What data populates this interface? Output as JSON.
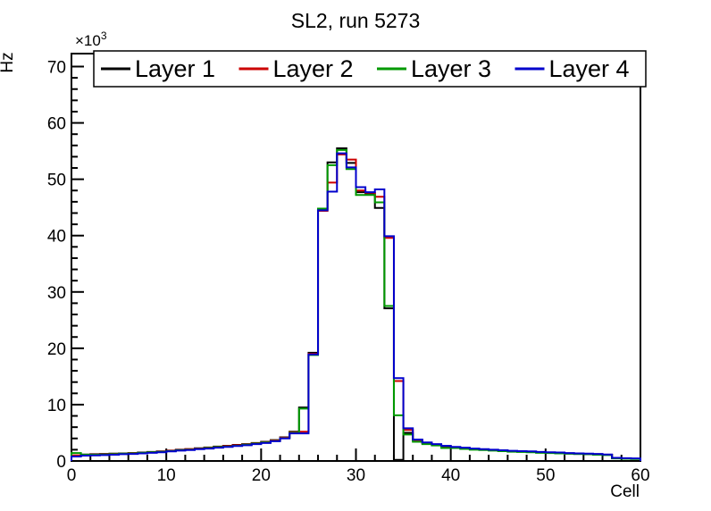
{
  "title": "SL2, run 5273",
  "y_axis": {
    "label": "Hz",
    "multiplier": "×10",
    "multiplier_exponent": "3",
    "major_ticks": [
      0,
      10,
      20,
      30,
      40,
      50,
      60,
      70
    ],
    "minor_step": 2
  },
  "x_axis": {
    "label": "Cell",
    "major_ticks": [
      0,
      10,
      20,
      30,
      40,
      50,
      60
    ],
    "minor_step": 2
  },
  "legend": {
    "items": [
      {
        "label": "Layer 1",
        "color": "#000000"
      },
      {
        "label": "Layer 2",
        "color": "#cc0000"
      },
      {
        "label": "Layer 3",
        "color": "#009900"
      },
      {
        "label": "Layer 4",
        "color": "#0000cc"
      }
    ]
  },
  "chart_data": {
    "type": "line",
    "subtype": "step-histogram",
    "title": "SL2, run 5273",
    "xlabel": "Cell",
    "ylabel": "Hz",
    "y_unit_multiplier": 1000,
    "xlim": [
      0,
      60
    ],
    "ylim": [
      0,
      72.3
    ],
    "bin_width": 1,
    "grid": false,
    "legend_position": "top",
    "series": [
      {
        "name": "Layer 1",
        "color": "#000000",
        "values": [
          0.9,
          1.15,
          1.2,
          1.25,
          1.3,
          1.35,
          1.4,
          1.5,
          1.6,
          1.7,
          1.85,
          2.0,
          2.1,
          2.25,
          2.4,
          2.55,
          2.7,
          2.85,
          3.0,
          3.2,
          3.4,
          3.7,
          4.2,
          5.2,
          9.5,
          19.2,
          44.6,
          53.0,
          55.5,
          52.9,
          47.7,
          47.5,
          44.9,
          27.1,
          0.2,
          5.0,
          3.6,
          3.15,
          2.85,
          2.6,
          2.4,
          2.25,
          2.1,
          2.0,
          1.9,
          1.8,
          1.7,
          1.65,
          1.6,
          1.5,
          1.45,
          1.4,
          1.3,
          1.25,
          1.2,
          1.15,
          1.1,
          0.5,
          0.45,
          0.4
        ]
      },
      {
        "name": "Layer 2",
        "color": "#cc0000",
        "values": [
          1.0,
          1.1,
          1.15,
          1.2,
          1.25,
          1.3,
          1.4,
          1.45,
          1.55,
          1.65,
          1.8,
          1.95,
          2.1,
          2.2,
          2.35,
          2.5,
          2.65,
          2.8,
          2.95,
          3.15,
          3.35,
          3.65,
          4.15,
          5.1,
          5.2,
          19.0,
          44.4,
          49.4,
          54.4,
          53.5,
          48.0,
          47.6,
          46.9,
          39.6,
          14.2,
          5.5,
          3.7,
          3.2,
          2.9,
          2.65,
          2.45,
          2.3,
          2.15,
          2.05,
          1.95,
          1.85,
          1.75,
          1.7,
          1.65,
          1.55,
          1.5,
          1.45,
          1.35,
          1.3,
          1.25,
          1.2,
          1.1,
          0.5,
          0.45,
          0.4
        ]
      },
      {
        "name": "Layer 3",
        "color": "#009900",
        "values": [
          1.4,
          1.1,
          1.1,
          1.15,
          1.2,
          1.3,
          1.35,
          1.45,
          1.55,
          1.6,
          1.75,
          1.9,
          2.0,
          2.15,
          2.3,
          2.45,
          2.55,
          2.7,
          2.9,
          3.1,
          3.3,
          3.55,
          4.05,
          5.0,
          9.3,
          18.8,
          44.8,
          52.5,
          55.2,
          51.8,
          47.2,
          47.2,
          45.9,
          27.5,
          8.1,
          4.7,
          3.4,
          3.0,
          2.75,
          2.3,
          2.3,
          2.15,
          2.0,
          1.95,
          1.85,
          1.75,
          1.65,
          1.6,
          1.55,
          1.45,
          1.4,
          1.35,
          1.3,
          1.25,
          1.2,
          1.1,
          1.05,
          0.45,
          0.4,
          0.35
        ]
      },
      {
        "name": "Layer 4",
        "color": "#0000cc",
        "values": [
          0.8,
          0.95,
          1.0,
          1.05,
          1.1,
          1.2,
          1.25,
          1.35,
          1.45,
          1.55,
          1.7,
          1.85,
          1.95,
          2.1,
          2.2,
          2.35,
          2.5,
          2.65,
          2.8,
          3.0,
          3.2,
          3.5,
          4.0,
          4.9,
          4.9,
          18.9,
          44.5,
          47.8,
          54.6,
          52.1,
          48.6,
          47.7,
          48.2,
          39.9,
          14.7,
          5.8,
          3.8,
          3.3,
          3.0,
          2.7,
          2.5,
          2.35,
          2.2,
          2.1,
          2.0,
          1.9,
          1.8,
          1.75,
          1.7,
          1.6,
          1.55,
          1.5,
          1.4,
          1.35,
          1.3,
          1.25,
          1.15,
          0.55,
          0.5,
          0.45
        ]
      }
    ]
  }
}
